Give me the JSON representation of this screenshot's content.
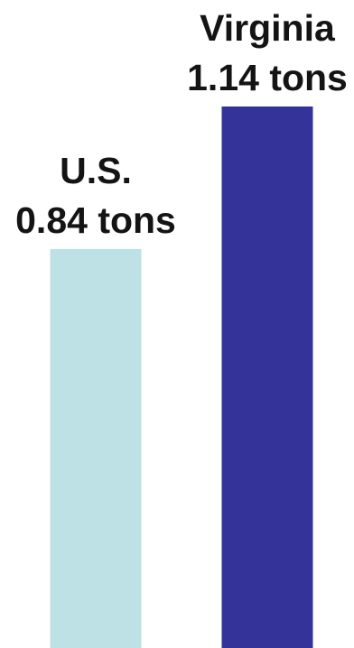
{
  "chart_data": {
    "type": "bar",
    "title": "",
    "xlabel": "",
    "ylabel": "",
    "unit": "tons",
    "categories": [
      "U.S.",
      "Virginia"
    ],
    "values": [
      0.84,
      1.14
    ],
    "value_labels": [
      "0.84 tons",
      "1.14 tons"
    ],
    "colors": [
      "#bde1e4",
      "#343399"
    ],
    "ylim": [
      0,
      1.14
    ],
    "grid": false,
    "legend": "none",
    "axes_visible": false
  }
}
